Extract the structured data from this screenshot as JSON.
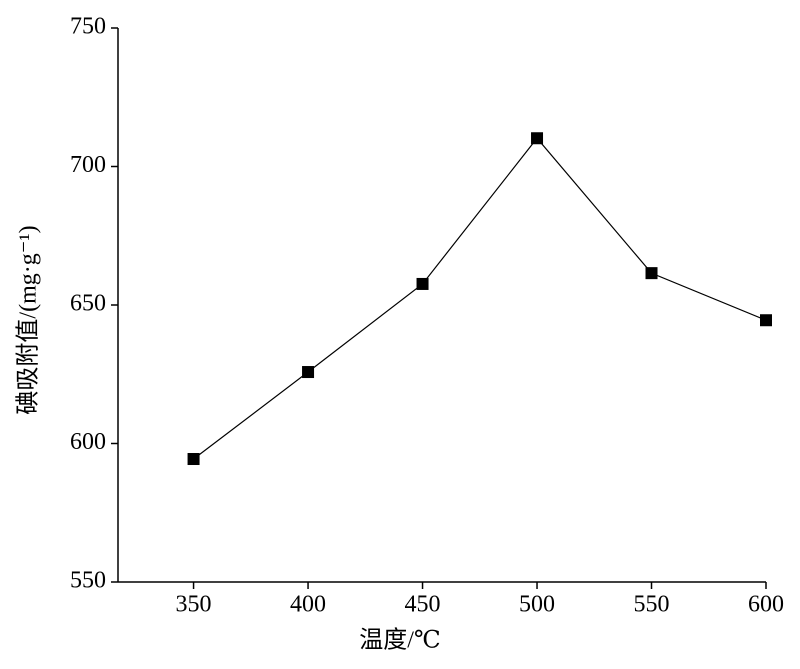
{
  "chart_data": {
    "type": "line",
    "x_label": "温度/℃",
    "y_label": "碘吸附值/(mg·g⁻¹)",
    "x": [
      350,
      400,
      450,
      500,
      550,
      600
    ],
    "series": [
      {
        "color": "#000000",
        "values": [
          594.4,
          625.8,
          657.6,
          710.2,
          661.5,
          644.5
        ]
      }
    ],
    "xlim": [
      317,
      600
    ],
    "xticks": [
      350,
      400,
      450,
      500,
      550,
      600
    ],
    "ylim": [
      550,
      750
    ],
    "yticks": [
      550,
      600,
      650,
      700,
      750
    ],
    "grid": false,
    "marker": "square"
  }
}
